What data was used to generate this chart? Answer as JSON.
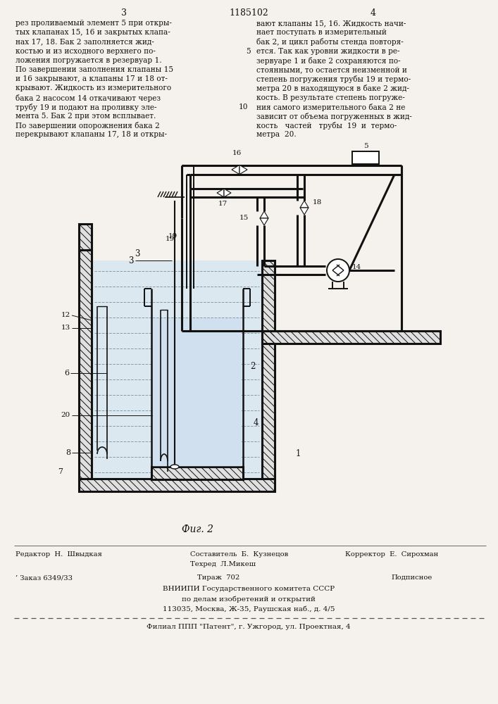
{
  "page_number_left": "3",
  "page_number_center": "1185102",
  "page_number_right": "4",
  "text_left": "рез проливаемый элемент 5 при откры-\nтых клапанах 15, 16 и закрытых клапа-\nнах 17, 18. Бак 2 заполняется жид-\nкостью и из исходного верхнего по-\nложения погружается в резервуар 1.\nПо завершении заполнения клапаны 15\nи 16 закрывают, а клапаны 17 и 18 от-\nкрывают. Жидкость из измерительного\nбака 2 насосом 14 откачивают через\nтрубу 19 и подают на проливку эле-\nмента 5. Бак 2 при этом всплывает.\nПо завершении опорожнения бака 2\nперекрывают клапаны 17, 18 и откры-",
  "text_right": "вают клапаны 15, 16. Жидкость начи-\nнает поступать в измерительный\nбак 2, и цикл работы стенда повторя-\nется. Так как уровни жидкости в ре-\nзервуаре 1 и баке 2 сохраняются по-\nстоянными, то остается неизменной и\nстепень погружения трубы 19 и термо-\nметра 20 в находящуюся в баке 2 жид-\nкость. В результате степень погруже-\nния самого измерительного бака 2 не\nзависит от объема погруженных в жид-\nкость   частей   трубы  19  и  термо-\nметра  20.",
  "fig_label": "Фиг. 2",
  "footer_left1": "Редактор  Н.  Швыдкая",
  "footer_center1": "Составитель  Б.  Кузнецов",
  "footer_right1": "Корректор  Е.  Сирохман",
  "footer_center2": "Техред  Л.Микеш",
  "footer_order": "’ Заказ 6349/33",
  "footer_tirazh": "Тираж  702",
  "footer_podpisnoe": "Подписное",
  "footer_vniipи": "ВНИИПИ Государственного комитета СССР",
  "footer_po_delam": "по делам изобретений и открытий",
  "footer_address": "113035, Москва, Ж-35, Раушская наб., д. 4/5",
  "footer_filial": "Филиал ППП \"Патент\", г. Ужгород, ул. Проектная, 4",
  "bg_color": "#f5f2ed"
}
